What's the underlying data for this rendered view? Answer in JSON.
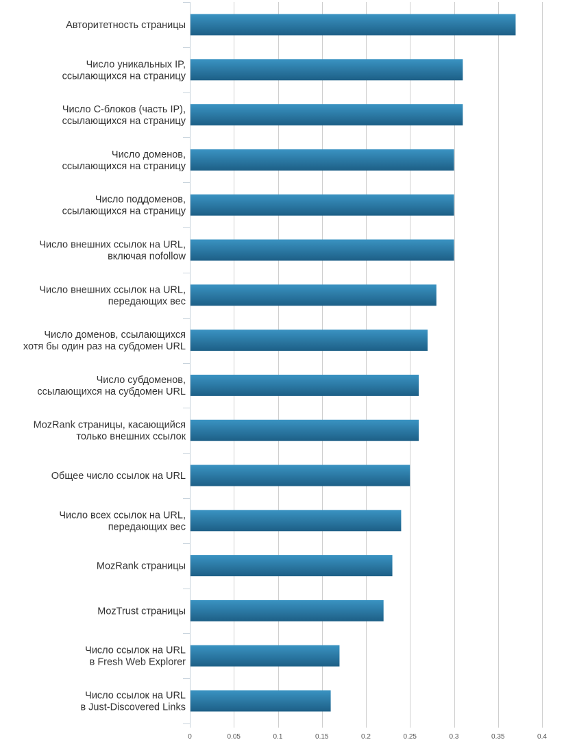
{
  "chart_data": {
    "type": "bar",
    "orientation": "horizontal",
    "title": "",
    "xlabel": "",
    "ylabel": "",
    "xlim": [
      0,
      0.4
    ],
    "x_ticks": [
      "0",
      "0.05",
      "0.1",
      "0.15",
      "0.2",
      "0.25",
      "0.3",
      "0.35",
      "0.4"
    ],
    "grid": true,
    "bar_color_top": "#3a93c2",
    "bar_color_bottom": "#1d5f86",
    "categories": [
      [
        "Авторитетность страницы"
      ],
      [
        "Число уникальных IP,",
        "ссылающихся на страницу"
      ],
      [
        "Число C-блоков (часть IP),",
        "ссылающихся на страницу"
      ],
      [
        "Число доменов,",
        "ссылающихся на страницу"
      ],
      [
        "Число поддоменов,",
        "ссылающихся на страницу"
      ],
      [
        "Число внешних ссылок на URL,",
        "включая nofollow"
      ],
      [
        "Число внешних ссылок на URL,",
        "передающих вес"
      ],
      [
        "Число доменов, ссылающихся",
        "хотя бы один раз на субдомен URL"
      ],
      [
        "Число субдоменов,",
        "ссылающихся на субдомен URL"
      ],
      [
        "MozRank страницы, касающийся",
        "только внешних ссылок"
      ],
      [
        "Общее число ссылок на URL"
      ],
      [
        "Число всех ссылок на URL,",
        "передающих вес"
      ],
      [
        "MozRank страницы"
      ],
      [
        "MozTrust страницы"
      ],
      [
        "Число ссылок на URL",
        "в Fresh Web Explorer"
      ],
      [
        "Число ссылок на URL",
        "в Just-Discovered Links"
      ]
    ],
    "values": [
      0.37,
      0.31,
      0.31,
      0.3,
      0.3,
      0.3,
      0.28,
      0.27,
      0.26,
      0.26,
      0.25,
      0.24,
      0.23,
      0.22,
      0.17,
      0.16
    ]
  }
}
